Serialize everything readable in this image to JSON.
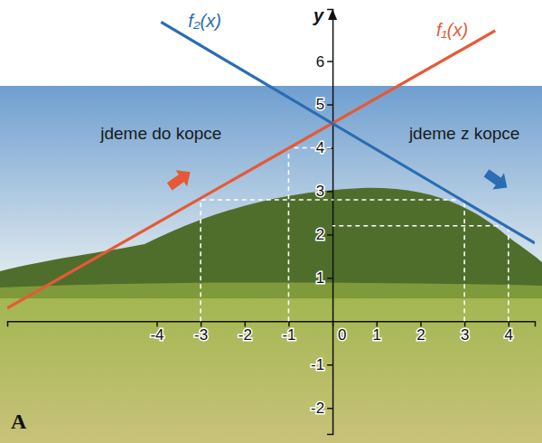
{
  "chart_data": {
    "type": "line",
    "ylabel": "y",
    "panel_label": "A",
    "xlim": [
      -7.4,
      4.6
    ],
    "ylim": [
      -2.6,
      7.2
    ],
    "xticks": [
      -4,
      -3,
      -2,
      -1,
      0,
      1,
      2,
      3,
      4
    ],
    "yticks": [
      -2,
      -1,
      1,
      2,
      3,
      4,
      5,
      6
    ],
    "grid": false,
    "series": [
      {
        "name": "f₁(x)",
        "color": "#e55a36",
        "x": [
          -7.4,
          3.7
        ],
        "values": [
          0.3,
          6.7
        ]
      },
      {
        "name": "f₂(x)",
        "color": "#2a6db3",
        "x": [
          -3.9,
          4.6
        ],
        "values": [
          6.9,
          1.8
        ]
      }
    ],
    "guides": {
      "x": [
        -3,
        -1,
        3,
        4
      ],
      "y": [
        2.8,
        4.0,
        2.8,
        2.2
      ]
    },
    "annotations": [
      {
        "text": "jdeme do kopce",
        "x": -3.9,
        "y": 4.2
      },
      {
        "text": "jdeme z kopce",
        "x": 3.0,
        "y": 4.2
      }
    ]
  }
}
